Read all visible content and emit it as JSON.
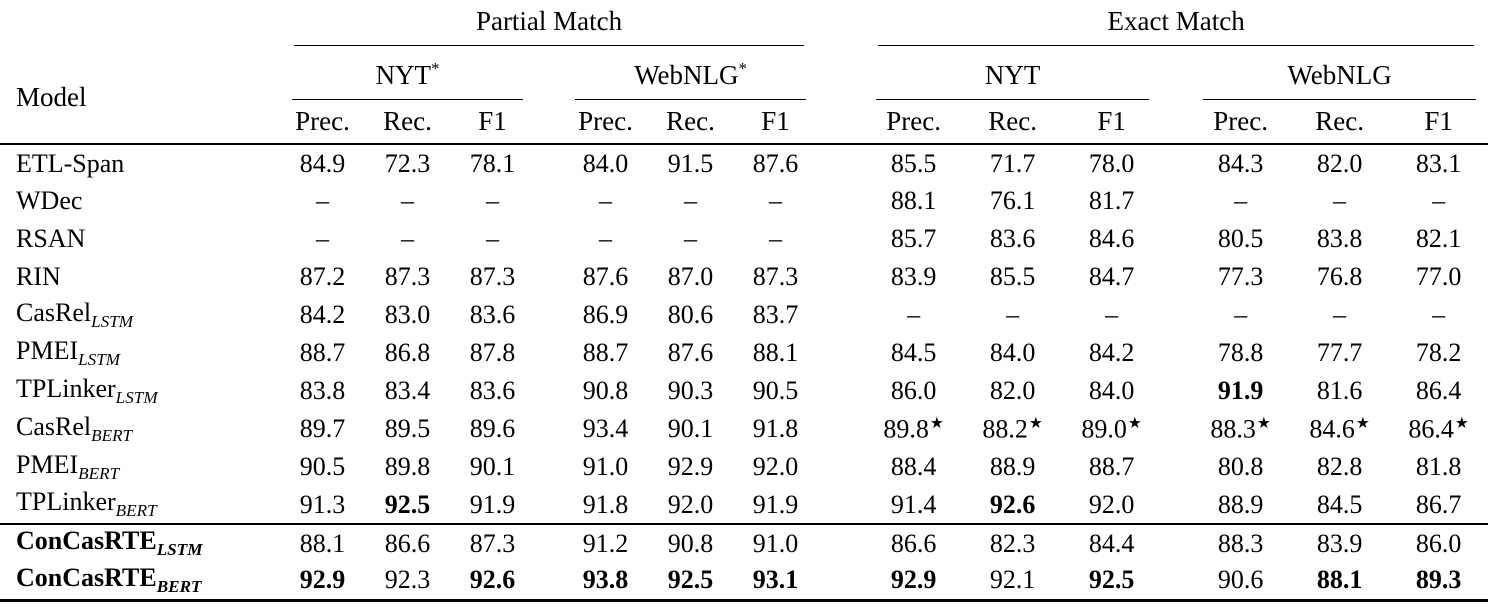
{
  "page": {
    "background_color": "#ffffff",
    "text_color": "#000000"
  },
  "table": {
    "corner_header": "Model",
    "groups": [
      {
        "label": "Partial Match"
      },
      {
        "label": "Exact Match"
      }
    ],
    "datasets": [
      {
        "name": "NYT",
        "sup": "*"
      },
      {
        "name": "WebNLG",
        "sup": "*"
      },
      {
        "name": "NYT",
        "sup": ""
      },
      {
        "name": "WebNLG",
        "sup": ""
      }
    ],
    "metrics": [
      "Prec.",
      "Rec.",
      "F1"
    ],
    "rows": [
      {
        "model": "ETL-Span",
        "sub": "",
        "bold_model": false,
        "section_start": false,
        "values": [
          "84.9",
          "72.3",
          "78.1",
          "84.0",
          "91.5",
          "87.6",
          "85.5",
          "71.7",
          "78.0",
          "84.3",
          "82.0",
          "83.1"
        ],
        "bold": [],
        "star": []
      },
      {
        "model": "WDec",
        "sub": "",
        "bold_model": false,
        "section_start": false,
        "values": [
          "–",
          "–",
          "–",
          "–",
          "–",
          "–",
          "88.1",
          "76.1",
          "81.7",
          "–",
          "–",
          "–"
        ],
        "bold": [],
        "star": []
      },
      {
        "model": "RSAN",
        "sub": "",
        "bold_model": false,
        "section_start": false,
        "values": [
          "–",
          "–",
          "–",
          "–",
          "–",
          "–",
          "85.7",
          "83.6",
          "84.6",
          "80.5",
          "83.8",
          "82.1"
        ],
        "bold": [],
        "star": []
      },
      {
        "model": "RIN",
        "sub": "",
        "bold_model": false,
        "section_start": false,
        "values": [
          "87.2",
          "87.3",
          "87.3",
          "87.6",
          "87.0",
          "87.3",
          "83.9",
          "85.5",
          "84.7",
          "77.3",
          "76.8",
          "77.0"
        ],
        "bold": [],
        "star": []
      },
      {
        "model": "CasRel",
        "sub": "LSTM",
        "bold_model": false,
        "section_start": false,
        "values": [
          "84.2",
          "83.0",
          "83.6",
          "86.9",
          "80.6",
          "83.7",
          "–",
          "–",
          "–",
          "–",
          "–",
          "–"
        ],
        "bold": [],
        "star": []
      },
      {
        "model": "PMEI",
        "sub": "LSTM",
        "bold_model": false,
        "section_start": false,
        "values": [
          "88.7",
          "86.8",
          "87.8",
          "88.7",
          "87.6",
          "88.1",
          "84.5",
          "84.0",
          "84.2",
          "78.8",
          "77.7",
          "78.2"
        ],
        "bold": [],
        "star": []
      },
      {
        "model": "TPLinker",
        "sub": "LSTM",
        "bold_model": false,
        "section_start": false,
        "values": [
          "83.8",
          "83.4",
          "83.6",
          "90.8",
          "90.3",
          "90.5",
          "86.0",
          "82.0",
          "84.0",
          "91.9",
          "81.6",
          "86.4"
        ],
        "bold": [
          9
        ],
        "star": []
      },
      {
        "model": "CasRel",
        "sub": "BERT",
        "bold_model": false,
        "section_start": false,
        "values": [
          "89.7",
          "89.5",
          "89.6",
          "93.4",
          "90.1",
          "91.8",
          "89.8",
          "88.2",
          "89.0",
          "88.3",
          "84.6",
          "86.4"
        ],
        "bold": [],
        "star": [
          6,
          7,
          8,
          9,
          10,
          11
        ]
      },
      {
        "model": "PMEI",
        "sub": "BERT",
        "bold_model": false,
        "section_start": false,
        "values": [
          "90.5",
          "89.8",
          "90.1",
          "91.0",
          "92.9",
          "92.0",
          "88.4",
          "88.9",
          "88.7",
          "80.8",
          "82.8",
          "81.8"
        ],
        "bold": [],
        "star": []
      },
      {
        "model": "TPLinker",
        "sub": "BERT",
        "bold_model": false,
        "section_start": false,
        "values": [
          "91.3",
          "92.5",
          "91.9",
          "91.8",
          "92.0",
          "91.9",
          "91.4",
          "92.6",
          "92.0",
          "88.9",
          "84.5",
          "86.7"
        ],
        "bold": [
          1,
          7
        ],
        "star": []
      },
      {
        "model": "ConCasRTE",
        "sub": "LSTM",
        "bold_model": true,
        "section_start": true,
        "values": [
          "88.1",
          "86.6",
          "87.3",
          "91.2",
          "90.8",
          "91.0",
          "86.6",
          "82.3",
          "84.4",
          "88.3",
          "83.9",
          "86.0"
        ],
        "bold": [],
        "star": []
      },
      {
        "model": "ConCasRTE",
        "sub": "BERT",
        "bold_model": true,
        "section_start": false,
        "values": [
          "92.9",
          "92.3",
          "92.6",
          "93.8",
          "92.5",
          "93.1",
          "92.9",
          "92.1",
          "92.5",
          "90.6",
          "88.1",
          "89.3"
        ],
        "bold": [
          0,
          2,
          3,
          4,
          5,
          6,
          8,
          10,
          11
        ],
        "star": []
      }
    ]
  }
}
